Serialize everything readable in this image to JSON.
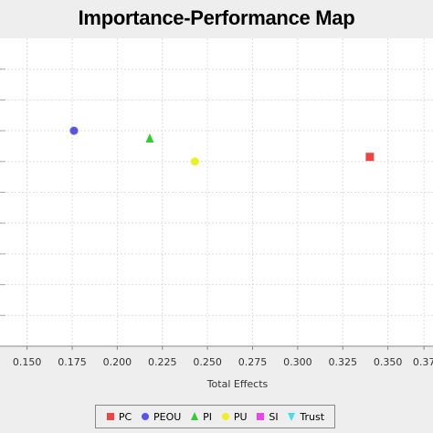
{
  "chart_data": {
    "type": "scatter",
    "title": "Importance-Performance Map",
    "xlabel": "Total Effects",
    "ylabel": "",
    "xlim": [
      0.135,
      0.375
    ],
    "ylim": [
      0,
      100
    ],
    "x_ticks": [
      "0.150",
      "0.175",
      "0.200",
      "0.225",
      "0.250",
      "0.275",
      "0.300",
      "0.325",
      "0.350",
      "0.37"
    ],
    "grid": true,
    "legend_position": "bottom",
    "series": [
      {
        "name": "PC",
        "color": "#ee4444",
        "marker": "square",
        "points": [
          {
            "x": 0.34,
            "y": 61.5
          }
        ]
      },
      {
        "name": "PEOU",
        "color": "#5555ee",
        "marker": "circle",
        "points": [
          {
            "x": 0.176,
            "y": 70.0
          }
        ]
      },
      {
        "name": "PI",
        "color": "#33cc33",
        "marker": "triangle-up",
        "points": [
          {
            "x": 0.218,
            "y": 67.5
          }
        ]
      },
      {
        "name": "PU",
        "color": "#eeee22",
        "marker": "circle",
        "points": [
          {
            "x": 0.243,
            "y": 60.0
          }
        ]
      },
      {
        "name": "SI",
        "color": "#ee44ee",
        "marker": "square",
        "points": []
      },
      {
        "name": "Trust",
        "color": "#44ddee",
        "marker": "triangle-down",
        "points": []
      }
    ]
  }
}
